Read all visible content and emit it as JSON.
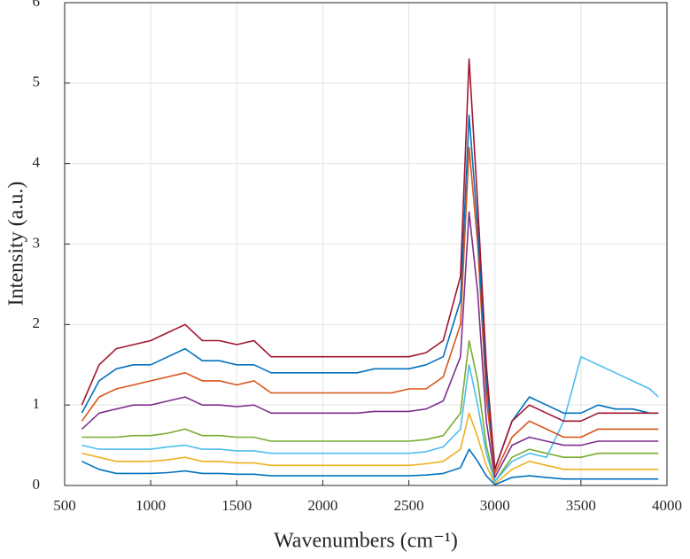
{
  "chart_data": {
    "type": "line",
    "x_label": "Wavenumbers (cm⁻¹)",
    "y_label": "Intensity (a.u.)",
    "xlim": [
      500,
      4000
    ],
    "xticks": [
      500,
      1000,
      1500,
      2000,
      2500,
      3000,
      3500,
      4000
    ],
    "ylim": [
      0,
      6
    ],
    "yticks": [
      0,
      1,
      2,
      3,
      4,
      5,
      6
    ],
    "grid": true,
    "x": [
      600,
      700,
      800,
      900,
      1000,
      1100,
      1200,
      1300,
      1400,
      1500,
      1600,
      1700,
      1800,
      1900,
      2000,
      2100,
      2200,
      2300,
      2400,
      2500,
      2600,
      2700,
      2800,
      2850,
      2900,
      2950,
      3000,
      3100,
      3200,
      3300,
      3400,
      3500,
      3600,
      3700,
      3800,
      3900,
      3950
    ],
    "series": [
      {
        "color": "#edb120",
        "values": [
          0.4,
          0.35,
          0.3,
          0.3,
          0.3,
          0.32,
          0.35,
          0.3,
          0.3,
          0.28,
          0.28,
          0.25,
          0.25,
          0.25,
          0.25,
          0.25,
          0.25,
          0.25,
          0.25,
          0.25,
          0.27,
          0.3,
          0.45,
          0.9,
          0.6,
          0.25,
          0.02,
          0.2,
          0.3,
          0.25,
          0.2,
          0.2,
          0.2,
          0.2,
          0.2,
          0.2,
          0.2
        ]
      },
      {
        "color": "#0072bd",
        "values": [
          0.3,
          0.2,
          0.15,
          0.15,
          0.15,
          0.16,
          0.18,
          0.15,
          0.15,
          0.14,
          0.14,
          0.12,
          0.12,
          0.12,
          0.12,
          0.12,
          0.12,
          0.12,
          0.12,
          0.12,
          0.13,
          0.15,
          0.22,
          0.45,
          0.3,
          0.12,
          0.01,
          0.1,
          0.12,
          0.1,
          0.08,
          0.08,
          0.08,
          0.08,
          0.08,
          0.08,
          0.08
        ]
      },
      {
        "color": "#77ac30",
        "values": [
          0.6,
          0.6,
          0.6,
          0.62,
          0.62,
          0.65,
          0.7,
          0.62,
          0.62,
          0.6,
          0.6,
          0.55,
          0.55,
          0.55,
          0.55,
          0.55,
          0.55,
          0.55,
          0.55,
          0.55,
          0.57,
          0.62,
          0.9,
          1.8,
          1.3,
          0.5,
          0.05,
          0.35,
          0.45,
          0.4,
          0.35,
          0.35,
          0.4,
          0.4,
          0.4,
          0.4,
          0.4
        ]
      },
      {
        "color": "#4dbeee",
        "values": [
          0.5,
          0.45,
          0.45,
          0.45,
          0.45,
          0.48,
          0.5,
          0.45,
          0.45,
          0.43,
          0.43,
          0.4,
          0.4,
          0.4,
          0.4,
          0.4,
          0.4,
          0.4,
          0.4,
          0.4,
          0.42,
          0.48,
          0.7,
          1.5,
          1.0,
          0.4,
          0.05,
          0.3,
          0.4,
          0.35,
          0.8,
          1.6,
          1.5,
          1.4,
          1.3,
          1.2,
          1.1
        ]
      },
      {
        "color": "#7e2f8e",
        "values": [
          0.7,
          0.9,
          0.95,
          1.0,
          1.0,
          1.05,
          1.1,
          1.0,
          1.0,
          0.98,
          1.0,
          0.9,
          0.9,
          0.9,
          0.9,
          0.9,
          0.9,
          0.92,
          0.92,
          0.92,
          0.95,
          1.05,
          1.6,
          3.4,
          2.4,
          0.8,
          0.1,
          0.5,
          0.6,
          0.55,
          0.5,
          0.5,
          0.55,
          0.55,
          0.55,
          0.55,
          0.55
        ]
      },
      {
        "color": "#d95319",
        "values": [
          0.8,
          1.1,
          1.2,
          1.25,
          1.3,
          1.35,
          1.4,
          1.3,
          1.3,
          1.25,
          1.3,
          1.15,
          1.15,
          1.15,
          1.15,
          1.15,
          1.15,
          1.15,
          1.15,
          1.2,
          1.2,
          1.35,
          2.0,
          4.2,
          3.0,
          1.1,
          0.15,
          0.6,
          0.8,
          0.7,
          0.6,
          0.6,
          0.7,
          0.7,
          0.7,
          0.7,
          0.7
        ]
      },
      {
        "color": "#0072bd",
        "values": [
          0.9,
          1.3,
          1.45,
          1.5,
          1.5,
          1.6,
          1.7,
          1.55,
          1.55,
          1.5,
          1.5,
          1.4,
          1.4,
          1.4,
          1.4,
          1.4,
          1.4,
          1.45,
          1.45,
          1.45,
          1.5,
          1.6,
          2.3,
          4.6,
          3.2,
          1.3,
          0.2,
          0.8,
          1.1,
          1.0,
          0.9,
          0.9,
          1.0,
          0.95,
          0.95,
          0.9,
          0.9
        ]
      },
      {
        "color": "#a2142f",
        "values": [
          1.0,
          1.5,
          1.7,
          1.75,
          1.8,
          1.9,
          2.0,
          1.8,
          1.8,
          1.75,
          1.8,
          1.6,
          1.6,
          1.6,
          1.6,
          1.6,
          1.6,
          1.6,
          1.6,
          1.6,
          1.65,
          1.8,
          2.6,
          5.3,
          3.5,
          1.5,
          0.2,
          0.8,
          1.0,
          0.9,
          0.8,
          0.8,
          0.9,
          0.9,
          0.9,
          0.9,
          0.9
        ]
      }
    ]
  }
}
